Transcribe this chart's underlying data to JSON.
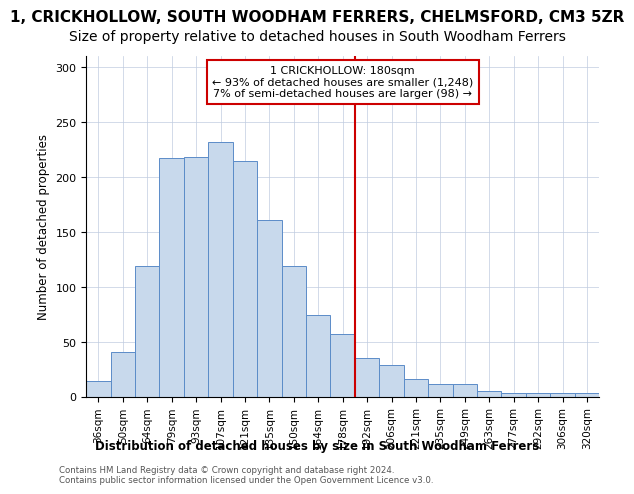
{
  "title": "1, CRICKHOLLOW, SOUTH WOODHAM FERRERS, CHELMSFORD, CM3 5ZR",
  "subtitle": "Size of property relative to detached houses in South Woodham Ferrers",
  "xlabel": "Distribution of detached houses by size in South Woodham Ferrers",
  "ylabel": "Number of detached properties",
  "categories": [
    "36sqm",
    "50sqm",
    "64sqm",
    "79sqm",
    "93sqm",
    "107sqm",
    "121sqm",
    "135sqm",
    "150sqm",
    "164sqm",
    "178sqm",
    "192sqm",
    "206sqm",
    "221sqm",
    "235sqm",
    "249sqm",
    "263sqm",
    "277sqm",
    "292sqm",
    "306sqm",
    "320sqm"
  ],
  "values": [
    14,
    41,
    119,
    217,
    218,
    232,
    215,
    161,
    119,
    74,
    57,
    35,
    29,
    16,
    11,
    11,
    5,
    3,
    3,
    3,
    3
  ],
  "bar_color": "#c8d9ec",
  "bar_edge_color": "#5b8cc8",
  "vline_color": "#cc0000",
  "annotation_text": "1 CRICKHOLLOW: 180sqm\n← 93% of detached houses are smaller (1,248)\n7% of semi-detached houses are larger (98) →",
  "ylim": [
    0,
    310
  ],
  "yticks": [
    0,
    50,
    100,
    150,
    200,
    250,
    300
  ],
  "footer1": "Contains HM Land Registry data © Crown copyright and database right 2024.",
  "footer2": "Contains public sector information licensed under the Open Government Licence v3.0.",
  "grid_color": "#c0cce0",
  "title_fontsize": 11,
  "subtitle_fontsize": 10
}
